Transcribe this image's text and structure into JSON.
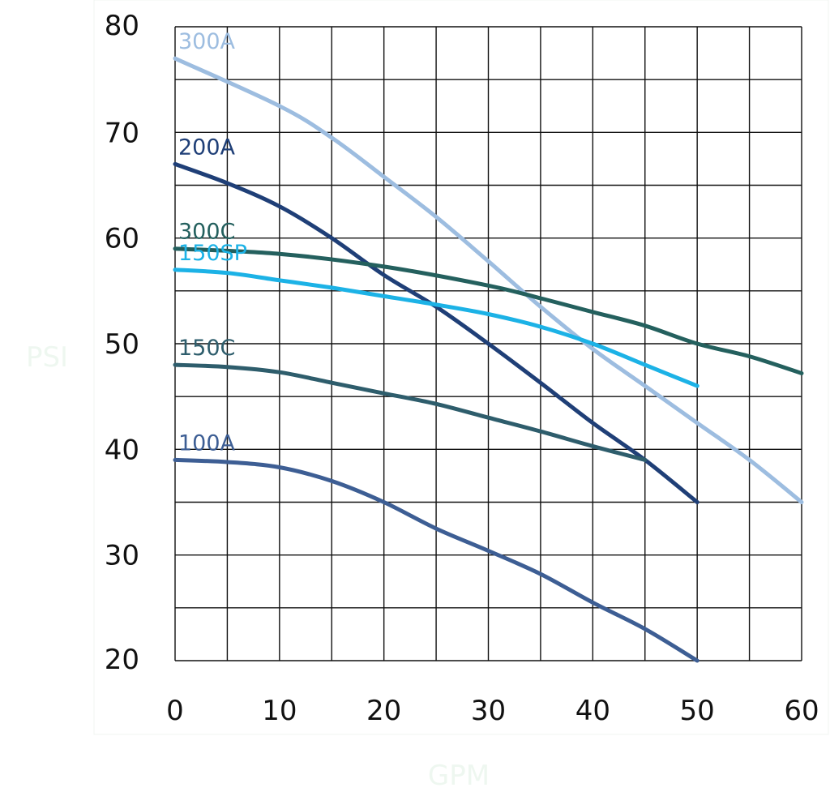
{
  "chart_data": {
    "type": "line",
    "xlabel": "GPM",
    "ylabel": "PSI",
    "xlim": [
      0,
      60
    ],
    "ylim": [
      20,
      80
    ],
    "x_ticks": [
      0,
      10,
      20,
      30,
      40,
      50,
      60
    ],
    "y_ticks": [
      80,
      70,
      60,
      50,
      40,
      30,
      20
    ],
    "grid": true,
    "legend": "inline-left",
    "series": [
      {
        "name": "300A",
        "color": "#9dbde0",
        "x": [
          0,
          10,
          15,
          20,
          25,
          30,
          35,
          40,
          45,
          50,
          55,
          60
        ],
        "y": [
          77,
          72.5,
          69.5,
          65.8,
          62,
          57.8,
          53.5,
          49.5,
          46,
          42.5,
          39,
          35
        ]
      },
      {
        "name": "200A",
        "color": "#1f3f77",
        "x": [
          0,
          5,
          10,
          15,
          20,
          25,
          30,
          35,
          40,
          45,
          50
        ],
        "y": [
          67,
          65.2,
          63,
          60,
          56.5,
          53.5,
          50,
          46.3,
          42.5,
          39,
          35
        ]
      },
      {
        "name": "300C",
        "color": "#24605e",
        "x": [
          0,
          10,
          20,
          30,
          35,
          40,
          45,
          50,
          55,
          60
        ],
        "y": [
          59,
          58.5,
          57.3,
          55.5,
          54.3,
          53,
          51.7,
          50,
          48.8,
          47.2
        ]
      },
      {
        "name": "150SP",
        "color": "#1cb2e6",
        "x": [
          0,
          5,
          10,
          15,
          20,
          25,
          30,
          35,
          40,
          45,
          50
        ],
        "y": [
          57,
          56.7,
          56,
          55.3,
          54.5,
          53.7,
          52.8,
          51.6,
          50,
          48,
          46
        ]
      },
      {
        "name": "150C",
        "color": "#2e5d6c",
        "x": [
          0,
          5,
          10,
          15,
          20,
          25,
          30,
          35,
          40,
          45
        ],
        "y": [
          48,
          47.8,
          47.3,
          46.3,
          45.3,
          44.3,
          43,
          41.7,
          40.3,
          39
        ]
      },
      {
        "name": "100A",
        "color": "#3d5e94",
        "x": [
          0,
          5,
          10,
          15,
          20,
          25,
          30,
          35,
          40,
          45,
          50
        ],
        "y": [
          39,
          38.8,
          38.3,
          37,
          35,
          32.5,
          30.4,
          28.2,
          25.5,
          23,
          20
        ]
      }
    ]
  }
}
